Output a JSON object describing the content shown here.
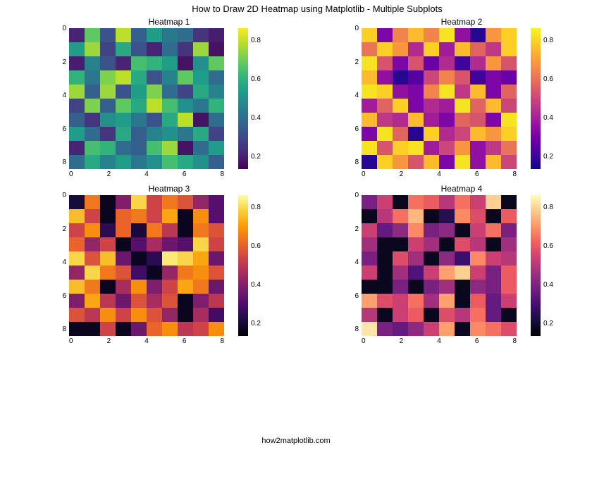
{
  "suptitle": "How to Draw 2D Heatmap using Matplotlib - Multiple Subplots",
  "footer": "how2matplotlib.com",
  "axis_ticks": [
    "0",
    "2",
    "4",
    "6",
    "8"
  ],
  "cbar_ticks": [
    "0.8",
    "0.6",
    "0.4",
    "0.2"
  ],
  "subplots": [
    {
      "title": "Heatmap 1",
      "cmap": "viridis",
      "data": [
        [
          0.1,
          0.75,
          0.25,
          0.9,
          0.3,
          0.55,
          0.4,
          0.35,
          0.15,
          0.08
        ],
        [
          0.55,
          0.85,
          0.2,
          0.6,
          0.25,
          0.1,
          0.35,
          0.15,
          0.85,
          0.05
        ],
        [
          0.08,
          0.45,
          0.25,
          0.1,
          0.7,
          0.65,
          0.55,
          0.05,
          0.5,
          0.75
        ],
        [
          0.65,
          0.4,
          0.8,
          0.9,
          0.6,
          0.25,
          0.45,
          0.75,
          0.55,
          0.35
        ],
        [
          0.85,
          0.3,
          0.85,
          0.25,
          0.55,
          0.8,
          0.35,
          0.2,
          0.6,
          0.45
        ],
        [
          0.2,
          0.8,
          0.3,
          0.75,
          0.6,
          0.9,
          0.7,
          0.5,
          0.4,
          0.65
        ],
        [
          0.3,
          0.15,
          0.5,
          0.55,
          0.4,
          0.25,
          0.6,
          0.9,
          0.05,
          0.35
        ],
        [
          0.55,
          0.35,
          0.15,
          0.6,
          0.3,
          0.45,
          0.5,
          0.4,
          0.6,
          0.2
        ],
        [
          0.1,
          0.7,
          0.65,
          0.35,
          0.3,
          0.7,
          0.85,
          0.05,
          0.35,
          0.55
        ],
        [
          0.35,
          0.6,
          0.45,
          0.55,
          0.4,
          0.5,
          0.7,
          0.6,
          0.5,
          0.3
        ]
      ]
    },
    {
      "title": "Heatmap 2",
      "cmap": "plasma",
      "data": [
        [
          0.9,
          0.25,
          0.7,
          0.85,
          0.7,
          0.95,
          0.3,
          0.05,
          0.75,
          0.9
        ],
        [
          0.65,
          0.9,
          0.75,
          0.4,
          0.9,
          0.35,
          0.85,
          0.6,
          0.45,
          0.9
        ],
        [
          0.95,
          0.55,
          0.25,
          0.55,
          0.2,
          0.4,
          0.1,
          0.4,
          0.75,
          0.55
        ],
        [
          0.85,
          0.3,
          0.05,
          0.15,
          0.5,
          0.7,
          0.55,
          0.1,
          0.25,
          0.2
        ],
        [
          0.95,
          0.9,
          0.3,
          0.25,
          0.7,
          0.95,
          0.45,
          0.85,
          0.25,
          0.6
        ],
        [
          0.35,
          0.6,
          0.9,
          0.25,
          0.4,
          0.35,
          0.95,
          0.6,
          0.85,
          0.5
        ],
        [
          0.85,
          0.45,
          0.4,
          0.85,
          0.35,
          0.25,
          0.6,
          0.55,
          0.25,
          0.95
        ],
        [
          0.25,
          0.95,
          0.6,
          0.05,
          0.9,
          0.4,
          0.5,
          0.85,
          0.75,
          0.9
        ],
        [
          0.95,
          0.55,
          0.9,
          0.95,
          0.35,
          0.5,
          0.75,
          0.3,
          0.45,
          0.65
        ],
        [
          0.05,
          0.9,
          0.75,
          0.55,
          0.85,
          0.25,
          0.95,
          0.3,
          0.85,
          0.5
        ]
      ]
    },
    {
      "title": "Heatmap 3",
      "cmap": "inferno",
      "data": [
        [
          0.1,
          0.7,
          0.05,
          0.35,
          0.9,
          0.55,
          0.7,
          0.6,
          0.4,
          0.25
        ],
        [
          0.85,
          0.55,
          0.05,
          0.65,
          0.7,
          0.55,
          0.8,
          0.05,
          0.75,
          0.25
        ],
        [
          0.55,
          0.75,
          0.15,
          0.65,
          0.1,
          0.7,
          0.5,
          0.05,
          0.7,
          0.6
        ],
        [
          0.65,
          0.4,
          0.55,
          0.05,
          0.25,
          0.45,
          0.3,
          0.25,
          0.9,
          0.55
        ],
        [
          0.9,
          0.6,
          0.85,
          0.3,
          0.05,
          0.15,
          0.95,
          0.9,
          0.8,
          0.3
        ],
        [
          0.4,
          0.9,
          0.7,
          0.6,
          0.2,
          0.05,
          0.4,
          0.7,
          0.75,
          0.6
        ],
        [
          0.85,
          0.7,
          0.05,
          0.45,
          0.75,
          0.35,
          0.55,
          0.8,
          0.7,
          0.3
        ],
        [
          0.35,
          0.8,
          0.5,
          0.3,
          0.6,
          0.45,
          0.6,
          0.05,
          0.35,
          0.5
        ],
        [
          0.6,
          0.5,
          0.75,
          0.55,
          0.75,
          0.6,
          0.4,
          0.05,
          0.45,
          0.2
        ],
        [
          0.05,
          0.05,
          0.55,
          0.05,
          0.3,
          0.65,
          0.75,
          0.5,
          0.55,
          0.75
        ]
      ]
    },
    {
      "title": "Heatmap 4",
      "cmap": "magma",
      "data": [
        [
          0.35,
          0.55,
          0.05,
          0.7,
          0.65,
          0.5,
          0.7,
          0.55,
          0.9,
          0.05
        ],
        [
          0.05,
          0.5,
          0.7,
          0.85,
          0.05,
          0.15,
          0.75,
          0.6,
          0.05,
          0.65
        ],
        [
          0.55,
          0.3,
          0.4,
          0.75,
          0.35,
          0.4,
          0.05,
          0.55,
          0.7,
          0.35
        ],
        [
          0.45,
          0.05,
          0.05,
          0.55,
          0.45,
          0.05,
          0.6,
          0.5,
          0.05,
          0.45
        ],
        [
          0.35,
          0.05,
          0.6,
          0.45,
          0.05,
          0.4,
          0.2,
          0.75,
          0.55,
          0.5
        ],
        [
          0.55,
          0.05,
          0.45,
          0.25,
          0.55,
          0.8,
          0.9,
          0.55,
          0.35,
          0.65
        ],
        [
          0.05,
          0.05,
          0.35,
          0.05,
          0.35,
          0.45,
          0.05,
          0.4,
          0.35,
          0.65
        ],
        [
          0.8,
          0.6,
          0.55,
          0.7,
          0.45,
          0.8,
          0.05,
          0.65,
          0.3,
          0.55
        ],
        [
          0.5,
          0.05,
          0.55,
          0.65,
          0.05,
          0.6,
          0.5,
          0.7,
          0.3,
          0.05
        ],
        [
          0.95,
          0.35,
          0.3,
          0.4,
          0.55,
          0.8,
          0.05,
          0.75,
          0.7,
          0.6
        ]
      ]
    }
  ],
  "colormaps": {
    "viridis": [
      "#440154",
      "#482878",
      "#3e4a89",
      "#31688e",
      "#26828e",
      "#1f9e89",
      "#35b779",
      "#6ece58",
      "#b5de2b",
      "#fde725"
    ],
    "plasma": [
      "#0d0887",
      "#46039f",
      "#7201a8",
      "#9c179e",
      "#bd3786",
      "#d8576b",
      "#ed7953",
      "#fb9f3a",
      "#fdca26",
      "#f0f921"
    ],
    "inferno": [
      "#000004",
      "#1b0c41",
      "#4a0c6b",
      "#781c6d",
      "#a52c60",
      "#cf4446",
      "#ed6925",
      "#fb9a06",
      "#f7d13d",
      "#fcffa4"
    ],
    "magma": [
      "#000004",
      "#180f3d",
      "#440f76",
      "#721f81",
      "#9e2f7f",
      "#cd4071",
      "#f1605d",
      "#fd9668",
      "#feca8d",
      "#fcfdbf"
    ]
  }
}
